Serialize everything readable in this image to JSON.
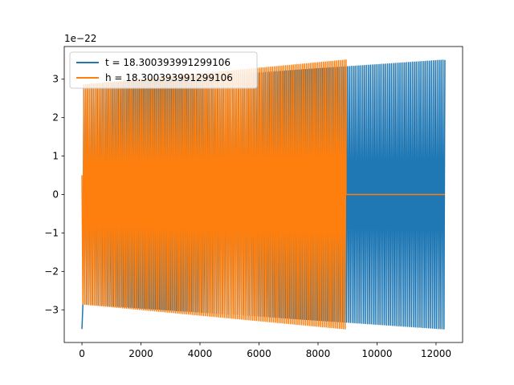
{
  "chart_data": {
    "type": "line",
    "title": "",
    "xlabel": "",
    "ylabel": "",
    "xlim": [
      -600,
      12900
    ],
    "ylim": [
      -3.85,
      3.85
    ],
    "y_offset_label": "1e−22",
    "x_ticks": [
      0,
      2000,
      4000,
      6000,
      8000,
      10000,
      12000
    ],
    "x_tick_labels": [
      "0",
      "2000",
      "4000",
      "6000",
      "8000",
      "10000",
      "12000"
    ],
    "y_ticks": [
      -3,
      -2,
      -1,
      0,
      1,
      2,
      3
    ],
    "y_tick_labels": [
      "−3",
      "−2",
      "−1",
      "0",
      "1",
      "2",
      "3"
    ],
    "grid": false,
    "legend_position": "top-left",
    "series": [
      {
        "name": "t = 18.300393991299106",
        "color": "#1f77b4",
        "x_start": 0,
        "x_end": 12300,
        "initial_value": -3.5,
        "envelope_start": 2.85,
        "envelope_end": 3.5,
        "cycles": 190
      },
      {
        "name": "h = 18.300393991299106",
        "color": "#ff7f0e",
        "x_start": 0,
        "x_end": 8950,
        "initial_value": 0.5,
        "envelope_start": 2.85,
        "envelope_end": 3.5,
        "cycles": 140,
        "flat_x_end": 12300,
        "flat_value": 0
      }
    ]
  }
}
